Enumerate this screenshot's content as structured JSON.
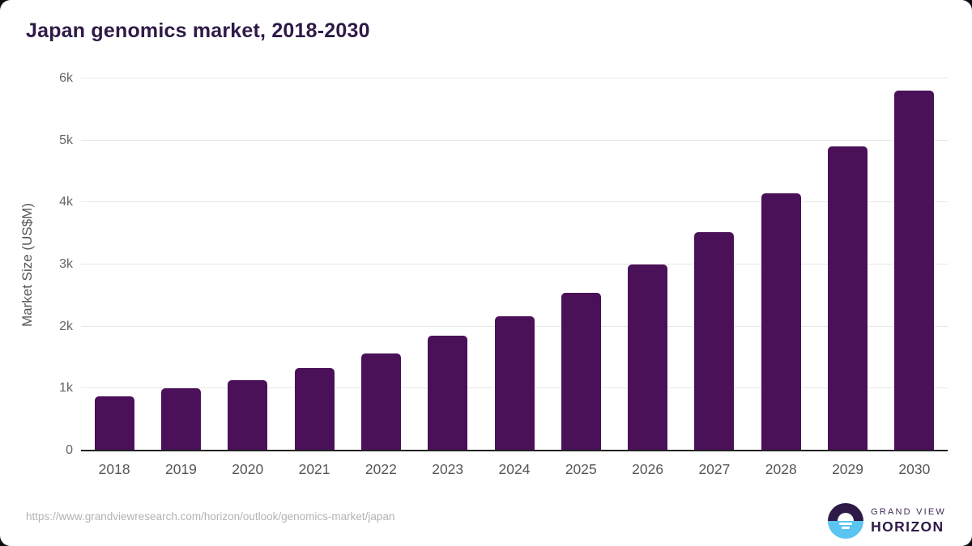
{
  "page": {
    "title": "Japan genomics market, 2018-2030"
  },
  "chart_data": {
    "type": "bar",
    "title": "Japan genomics market, 2018-2030",
    "categories": [
      "2018",
      "2019",
      "2020",
      "2021",
      "2022",
      "2023",
      "2024",
      "2025",
      "2026",
      "2027",
      "2028",
      "2029",
      "2030"
    ],
    "values": [
      870,
      1000,
      1140,
      1330,
      1570,
      1850,
      2160,
      2550,
      3000,
      3520,
      4150,
      4900,
      5800
    ],
    "xlabel": "",
    "ylabel": "Market Size (US$M)",
    "ylim": [
      0,
      6000
    ],
    "yticks": [
      {
        "value": 0,
        "label": "0"
      },
      {
        "value": 1000,
        "label": "1k"
      },
      {
        "value": 2000,
        "label": "2k"
      },
      {
        "value": 3000,
        "label": "3k"
      },
      {
        "value": 4000,
        "label": "4k"
      },
      {
        "value": 5000,
        "label": "5k"
      },
      {
        "value": 6000,
        "label": "6k"
      }
    ],
    "grid": true,
    "legend": false,
    "bar_color": "#4a1158"
  },
  "footer": {
    "source_url": "https://www.grandviewresearch.com/horizon/outlook/genomics-market/japan",
    "logo": {
      "line1": "GRAND VIEW",
      "line2": "HORIZON"
    }
  },
  "colors": {
    "bar": "#4a1158",
    "title": "#2e1a47",
    "axis": "#222222",
    "gridline": "#e7e7e7",
    "tick_label": "#666666",
    "source_url": "#b3b3b3",
    "logo_blue": "#5bc4f0",
    "logo_purple": "#2e1a47"
  }
}
